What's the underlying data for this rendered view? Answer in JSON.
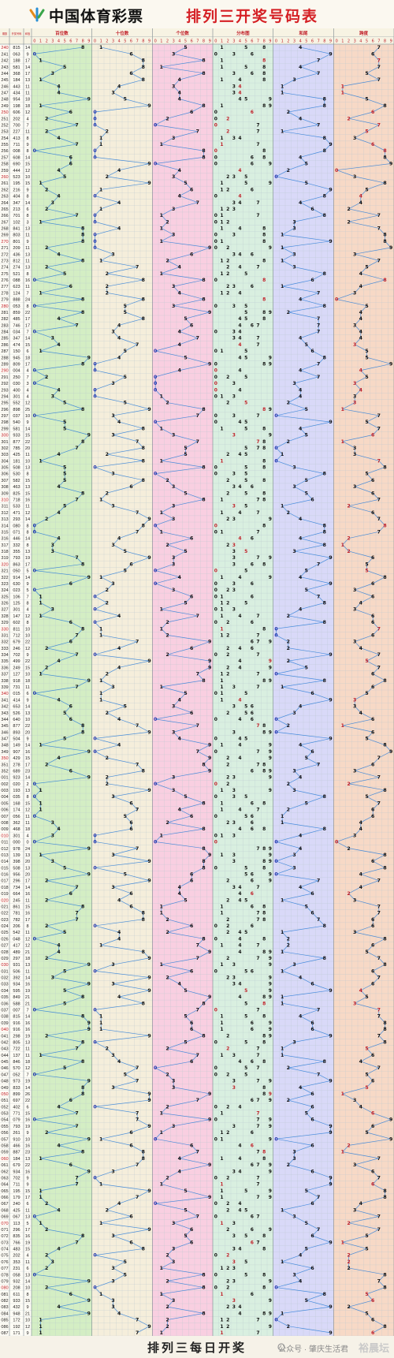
{
  "header": {
    "brand": "中国体育彩票",
    "title": "排列三开奖号码表"
  },
  "footer": {
    "title": "排列三每日开奖",
    "watermark": "公众号 · 肇庆生活君",
    "watermark_site": "裕晨坛"
  },
  "table": {
    "col_headers": [
      "期数",
      "开奖号码",
      "和值"
    ],
    "sections": [
      {
        "key": "hundreds",
        "label": "百位数",
        "color": "#d4eec4"
      },
      {
        "key": "tens",
        "label": "十位数",
        "color": "#f5eedb"
      },
      {
        "key": "units",
        "label": "个位数",
        "color": "#f9cfe1"
      },
      {
        "key": "dist",
        "label": "分布图",
        "color": "#d9efe0"
      },
      {
        "key": "sumtail",
        "label": "和尾",
        "color": "#d9d9f8"
      },
      {
        "key": "span",
        "label": "跨度",
        "color": "#f7d9c6"
      }
    ],
    "digits": [
      "0",
      "1",
      "2",
      "3",
      "4",
      "5",
      "6",
      "7",
      "8",
      "9"
    ],
    "rows": [
      {
        "issue": "240",
        "num": "815",
        "sum": "14"
      },
      {
        "issue": "241",
        "num": "063",
        "sum": "9"
      },
      {
        "issue": "242",
        "num": "188",
        "sum": "17"
      },
      {
        "issue": "243",
        "num": "581",
        "sum": "14"
      },
      {
        "issue": "244",
        "num": "368",
        "sum": "17"
      },
      {
        "issue": "245",
        "num": "184",
        "sum": "13"
      },
      {
        "issue": "246",
        "num": "443",
        "sum": "11"
      },
      {
        "issue": "247",
        "num": "434",
        "sum": "11"
      },
      {
        "issue": "248",
        "num": "954",
        "sum": "18"
      },
      {
        "issue": "249",
        "num": "198",
        "sum": "18"
      },
      {
        "issue": "250",
        "num": "606",
        "sum": "12"
      },
      {
        "issue": "251",
        "num": "202",
        "sum": "4"
      },
      {
        "issue": "252",
        "num": "700",
        "sum": "7"
      },
      {
        "issue": "253",
        "num": "227",
        "sum": "11"
      },
      {
        "issue": "254",
        "num": "413",
        "sum": "8"
      },
      {
        "issue": "255",
        "num": "711",
        "sum": "9"
      },
      {
        "issue": "256",
        "num": "008",
        "sum": "8"
      },
      {
        "issue": "257",
        "num": "608",
        "sum": "14"
      },
      {
        "issue": "258",
        "num": "690",
        "sum": "15"
      },
      {
        "issue": "259",
        "num": "444",
        "sum": "12"
      },
      {
        "issue": "260",
        "num": "523",
        "sum": "10"
      },
      {
        "issue": "261",
        "num": "195",
        "sum": "15"
      },
      {
        "issue": "262",
        "num": "216",
        "sum": "9"
      },
      {
        "issue": "263",
        "num": "404",
        "sum": "8"
      },
      {
        "issue": "264",
        "num": "347",
        "sum": "14"
      },
      {
        "issue": "265",
        "num": "213",
        "sum": "6"
      },
      {
        "issue": "266",
        "num": "701",
        "sum": "8"
      },
      {
        "issue": "267",
        "num": "102",
        "sum": "3"
      },
      {
        "issue": "268",
        "num": "841",
        "sum": "13"
      },
      {
        "issue": "269",
        "num": "803",
        "sum": "11"
      },
      {
        "issue": "270",
        "num": "801",
        "sum": "9"
      },
      {
        "issue": "271",
        "num": "209",
        "sum": "11"
      },
      {
        "issue": "272",
        "num": "436",
        "sum": "13"
      },
      {
        "issue": "273",
        "num": "812",
        "sum": "11"
      },
      {
        "issue": "274",
        "num": "274",
        "sum": "13"
      },
      {
        "issue": "275",
        "num": "521",
        "sum": "8"
      },
      {
        "issue": "276",
        "num": "088",
        "sum": "16"
      },
      {
        "issue": "277",
        "num": "623",
        "sum": "11"
      },
      {
        "issue": "278",
        "num": "124",
        "sum": "7"
      },
      {
        "issue": "279",
        "num": "888",
        "sum": "24"
      },
      {
        "issue": "280",
        "num": "053",
        "sum": "8"
      },
      {
        "issue": "281",
        "num": "859",
        "sum": "22"
      },
      {
        "issue": "282",
        "num": "485",
        "sum": "17"
      },
      {
        "issue": "283",
        "num": "746",
        "sum": "17"
      },
      {
        "issue": "284",
        "num": "034",
        "sum": "7"
      },
      {
        "issue": "285",
        "num": "347",
        "sum": "14"
      },
      {
        "issue": "286",
        "num": "474",
        "sum": "15"
      },
      {
        "issue": "287",
        "num": "150",
        "sum": "6"
      },
      {
        "issue": "288",
        "num": "945",
        "sum": "18"
      },
      {
        "issue": "289",
        "num": "809",
        "sum": "17"
      },
      {
        "issue": "290",
        "num": "004",
        "sum": "4"
      },
      {
        "issue": "291",
        "num": "250",
        "sum": "7"
      },
      {
        "issue": "292",
        "num": "030",
        "sum": "3"
      },
      {
        "issue": "293",
        "num": "400",
        "sum": "4"
      },
      {
        "issue": "294",
        "num": "301",
        "sum": "4"
      },
      {
        "issue": "295",
        "num": "552",
        "sum": "12"
      },
      {
        "issue": "296",
        "num": "898",
        "sum": "25"
      },
      {
        "issue": "297",
        "num": "037",
        "sum": "10"
      },
      {
        "issue": "298",
        "num": "540",
        "sum": "9"
      },
      {
        "issue": "299",
        "num": "581",
        "sum": "14"
      },
      {
        "issue": "300",
        "num": "933",
        "sum": "15"
      },
      {
        "issue": "301",
        "num": "877",
        "sum": "22"
      },
      {
        "issue": "302",
        "num": "785",
        "sum": "20"
      },
      {
        "issue": "303",
        "num": "425",
        "sum": "11"
      },
      {
        "issue": "304",
        "num": "181",
        "sum": "10"
      },
      {
        "issue": "305",
        "num": "508",
        "sum": "13"
      },
      {
        "issue": "306",
        "num": "530",
        "sum": "8"
      },
      {
        "issue": "307",
        "num": "582",
        "sum": "15"
      },
      {
        "issue": "308",
        "num": "463",
        "sum": "13"
      },
      {
        "issue": "309",
        "num": "825",
        "sum": "15"
      },
      {
        "issue": "310",
        "num": "718",
        "sum": "16"
      },
      {
        "issue": "311",
        "num": "533",
        "sum": "11"
      },
      {
        "issue": "312",
        "num": "471",
        "sum": "12"
      },
      {
        "issue": "313",
        "num": "293",
        "sum": "14"
      },
      {
        "issue": "314",
        "num": "080",
        "sum": "8"
      },
      {
        "issue": "315",
        "num": "071",
        "sum": "8"
      },
      {
        "issue": "316",
        "num": "446",
        "sum": "14"
      },
      {
        "issue": "317",
        "num": "332",
        "sum": "8"
      },
      {
        "issue": "318",
        "num": "355",
        "sum": "13"
      },
      {
        "issue": "319",
        "num": "793",
        "sum": "19"
      },
      {
        "issue": "320",
        "num": "863",
        "sum": "17"
      },
      {
        "issue": "321",
        "num": "050",
        "sum": "5"
      },
      {
        "issue": "322",
        "num": "914",
        "sum": "14"
      },
      {
        "issue": "323",
        "num": "630",
        "sum": "9"
      },
      {
        "issue": "324",
        "num": "023",
        "sum": "5"
      },
      {
        "issue": "325",
        "num": "106",
        "sum": "7"
      },
      {
        "issue": "326",
        "num": "125",
        "sum": "8"
      },
      {
        "issue": "327",
        "num": "301",
        "sum": "4"
      },
      {
        "issue": "328",
        "num": "147",
        "sum": "12"
      },
      {
        "issue": "329",
        "num": "602",
        "sum": "8"
      },
      {
        "issue": "330",
        "num": "811",
        "sum": "10"
      },
      {
        "issue": "331",
        "num": "712",
        "sum": "10"
      },
      {
        "issue": "332",
        "num": "679",
        "sum": "22"
      },
      {
        "issue": "333",
        "num": "246",
        "sum": "12"
      },
      {
        "issue": "334",
        "num": "702",
        "sum": "9"
      },
      {
        "issue": "335",
        "num": "499",
        "sum": "22"
      },
      {
        "issue": "336",
        "num": "249",
        "sum": "15"
      },
      {
        "issue": "337",
        "num": "127",
        "sum": "10"
      },
      {
        "issue": "338",
        "num": "918",
        "sum": "18"
      },
      {
        "issue": "339",
        "num": "731",
        "sum": "11"
      },
      {
        "issue": "340",
        "num": "015",
        "sum": "6"
      },
      {
        "issue": "341",
        "num": "414",
        "sum": "9"
      },
      {
        "issue": "342",
        "num": "653",
        "sum": "14"
      },
      {
        "issue": "343",
        "num": "526",
        "sum": "13"
      },
      {
        "issue": "344",
        "num": "640",
        "sum": "10"
      },
      {
        "issue": "345",
        "num": "877",
        "sum": "22"
      },
      {
        "issue": "346",
        "num": "893",
        "sum": "20"
      },
      {
        "issue": "347",
        "num": "504",
        "sum": "9"
      },
      {
        "issue": "348",
        "num": "149",
        "sum": "14"
      },
      {
        "issue": "349",
        "num": "907",
        "sum": "16"
      },
      {
        "issue": "350",
        "num": "429",
        "sum": "15"
      },
      {
        "issue": "351",
        "num": "278",
        "sum": "17"
      },
      {
        "issue": "352",
        "num": "689",
        "sum": "23"
      },
      {
        "issue": "001",
        "num": "923",
        "sum": "14"
      },
      {
        "issue": "002",
        "num": "020",
        "sum": "2"
      },
      {
        "issue": "003",
        "num": "193",
        "sum": "13"
      },
      {
        "issue": "004",
        "num": "035",
        "sum": "8"
      },
      {
        "issue": "005",
        "num": "168",
        "sum": "15"
      },
      {
        "issue": "006",
        "num": "174",
        "sum": "12"
      },
      {
        "issue": "007",
        "num": "056",
        "sum": "11"
      },
      {
        "issue": "008",
        "num": "362",
        "sum": "11"
      },
      {
        "issue": "009",
        "num": "468",
        "sum": "18"
      },
      {
        "issue": "010",
        "num": "301",
        "sum": "4"
      },
      {
        "issue": "011",
        "num": "000",
        "sum": "0"
      },
      {
        "issue": "012",
        "num": "978",
        "sum": "24"
      },
      {
        "issue": "013",
        "num": "139",
        "sum": "13"
      },
      {
        "issue": "014",
        "num": "398",
        "sum": "20"
      },
      {
        "issue": "015",
        "num": "508",
        "sum": "13"
      },
      {
        "issue": "016",
        "num": "956",
        "sum": "20"
      },
      {
        "issue": "017",
        "num": "296",
        "sum": "17"
      },
      {
        "issue": "018",
        "num": "734",
        "sum": "14"
      },
      {
        "issue": "019",
        "num": "664",
        "sum": "16"
      },
      {
        "issue": "020",
        "num": "245",
        "sum": "11"
      },
      {
        "issue": "021",
        "num": "861",
        "sum": "15"
      },
      {
        "issue": "022",
        "num": "781",
        "sum": "16"
      },
      {
        "issue": "023",
        "num": "782",
        "sum": "17"
      },
      {
        "issue": "024",
        "num": "206",
        "sum": "8"
      },
      {
        "issue": "025",
        "num": "542",
        "sum": "11"
      },
      {
        "issue": "026",
        "num": "048",
        "sum": "12"
      },
      {
        "issue": "027",
        "num": "417",
        "sum": "12"
      },
      {
        "issue": "028",
        "num": "489",
        "sum": "21"
      },
      {
        "issue": "029",
        "num": "297",
        "sum": "18"
      },
      {
        "issue": "030",
        "num": "931",
        "sum": "13"
      },
      {
        "issue": "031",
        "num": "506",
        "sum": "11"
      },
      {
        "issue": "032",
        "num": "392",
        "sum": "14"
      },
      {
        "issue": "033",
        "num": "934",
        "sum": "16"
      },
      {
        "issue": "034",
        "num": "595",
        "sum": "19"
      },
      {
        "issue": "035",
        "num": "849",
        "sum": "21"
      },
      {
        "issue": "036",
        "num": "588",
        "sum": "21"
      },
      {
        "issue": "037",
        "num": "007",
        "sum": "7"
      },
      {
        "issue": "038",
        "num": "815",
        "sum": "14"
      },
      {
        "issue": "039",
        "num": "916",
        "sum": "16"
      },
      {
        "issue": "040",
        "num": "916",
        "sum": "16"
      },
      {
        "issue": "041",
        "num": "298",
        "sum": "19"
      },
      {
        "issue": "042",
        "num": "805",
        "sum": "13"
      },
      {
        "issue": "043",
        "num": "722",
        "sum": "11"
      },
      {
        "issue": "044",
        "num": "137",
        "sum": "11"
      },
      {
        "issue": "045",
        "num": "846",
        "sum": "18"
      },
      {
        "issue": "046",
        "num": "570",
        "sum": "12"
      },
      {
        "issue": "047",
        "num": "052",
        "sum": "7"
      },
      {
        "issue": "048",
        "num": "973",
        "sum": "19"
      },
      {
        "issue": "049",
        "num": "833",
        "sum": "14"
      },
      {
        "issue": "050",
        "num": "899",
        "sum": "26"
      },
      {
        "issue": "051",
        "num": "697",
        "sum": "22"
      },
      {
        "issue": "052",
        "num": "402",
        "sum": "6"
      },
      {
        "issue": "053",
        "num": "771",
        "sum": "15"
      },
      {
        "issue": "054",
        "num": "079",
        "sum": "16"
      },
      {
        "issue": "055",
        "num": "793",
        "sum": "19"
      },
      {
        "issue": "056",
        "num": "261",
        "sum": "9"
      },
      {
        "issue": "057",
        "num": "910",
        "sum": "10"
      },
      {
        "issue": "058",
        "num": "466",
        "sum": "16"
      },
      {
        "issue": "059",
        "num": "887",
        "sum": "23"
      },
      {
        "issue": "060",
        "num": "184",
        "sum": "13"
      },
      {
        "issue": "061",
        "num": "679",
        "sum": "22"
      },
      {
        "issue": "062",
        "num": "934",
        "sum": "16"
      },
      {
        "issue": "063",
        "num": "702",
        "sum": "9"
      },
      {
        "issue": "064",
        "num": "711",
        "sum": "9"
      },
      {
        "issue": "065",
        "num": "195",
        "sum": "15"
      },
      {
        "issue": "066",
        "num": "179",
        "sum": "17"
      },
      {
        "issue": "067",
        "num": "240",
        "sum": "6"
      },
      {
        "issue": "068",
        "num": "425",
        "sum": "11"
      },
      {
        "issue": "069",
        "num": "067",
        "sum": "13"
      },
      {
        "issue": "070",
        "num": "113",
        "sum": "5"
      },
      {
        "issue": "071",
        "num": "296",
        "sum": "17"
      },
      {
        "issue": "072",
        "num": "835",
        "sum": "16"
      },
      {
        "issue": "073",
        "num": "766",
        "sum": "19"
      },
      {
        "issue": "074",
        "num": "483",
        "sum": "15"
      },
      {
        "issue": "075",
        "num": "202",
        "sum": "4"
      },
      {
        "issue": "076",
        "num": "353",
        "sum": "11"
      },
      {
        "issue": "077",
        "num": "231",
        "sum": "6"
      },
      {
        "issue": "078",
        "num": "058",
        "sum": "13"
      },
      {
        "issue": "079",
        "num": "932",
        "sum": "14"
      },
      {
        "issue": "080",
        "num": "208",
        "sum": "10"
      },
      {
        "issue": "081",
        "num": "611",
        "sum": "8"
      },
      {
        "issue": "082",
        "num": "933",
        "sum": "15"
      },
      {
        "issue": "083",
        "num": "432",
        "sum": "9"
      },
      {
        "issue": "084",
        "num": "948",
        "sum": "21"
      },
      {
        "issue": "085",
        "num": "172",
        "sum": "10"
      },
      {
        "issue": "086",
        "num": "192",
        "sum": "12"
      },
      {
        "issue": "087",
        "num": "171",
        "sum": "9"
      }
    ]
  }
}
